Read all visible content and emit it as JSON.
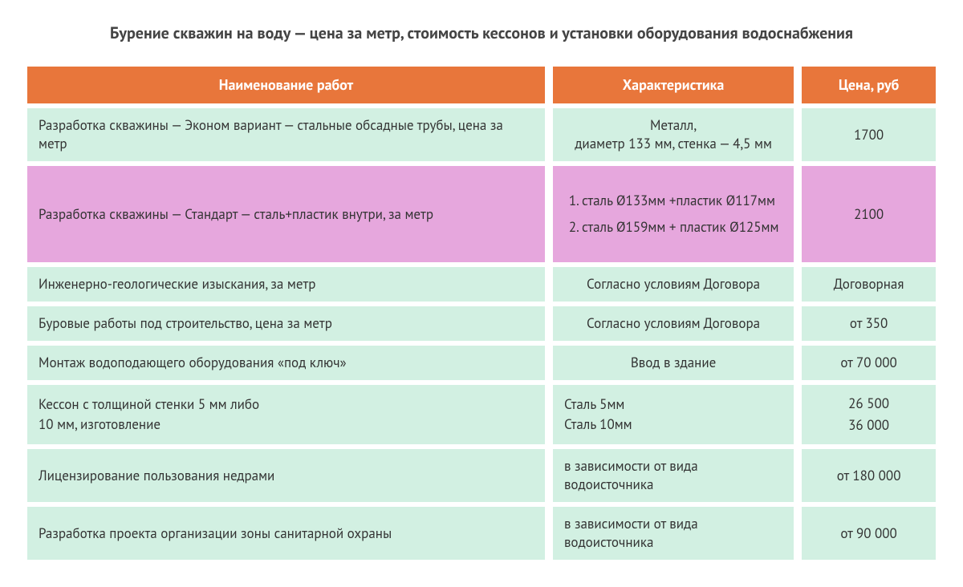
{
  "title": "Бурение скважин на воду — цена за метр, стоимость кессонов и установки оборудования водоснабжения",
  "headers": {
    "name": "Наименование работ",
    "char": "Характеристика",
    "price": "Цена, руб"
  },
  "rows": {
    "r1": {
      "name": "Разработка скважины  — Эконом вариант — стальные обсадные трубы, цена за метр",
      "char": "Металл,\nдиаметр 133 мм, стенка — 4,5 мм",
      "price": "1700"
    },
    "r2": {
      "name": "Разработка скважины  — Стандарт — сталь+пластик внутри, за метр",
      "spec1": "сталь Ø133мм +пластик Ø117мм",
      "spec2": "сталь Ø159мм + пластик Ø125мм",
      "price": "2100"
    },
    "r3": {
      "name": "Инженерно-геологические изыскания, за метр",
      "char": "Согласно условиям Договора",
      "price": "Договорная"
    },
    "r4": {
      "name": "Буровые работы под строительство, цена за метр",
      "char": "Согласно условиям Договора",
      "price": "от 350"
    },
    "r5": {
      "name": "Монтаж водоподающего оборудования «под ключ»",
      "char": "Ввод в здание",
      "price": "от 70 000"
    },
    "r6": {
      "name_l1": "Кессон с толщиной стенки 5 мм либо",
      "name_l2": "10 мм, изготовление",
      "char_l1": "Сталь 5мм",
      "char_l2": "Сталь 10мм",
      "price_l1": "26 500",
      "price_l2": "36 000"
    },
    "r7": {
      "name": "Лицензирование  пользования недрами",
      "char": "в зависимости от вида водоисточника",
      "price": "от 180 000"
    },
    "r8": {
      "name": "Разработка проекта организации зоны санитарной охраны",
      "char": "в зависимости от вида водоисточника",
      "price": "от 90 000"
    }
  },
  "colors": {
    "header_bg": "#e8763b",
    "mint_bg": "#d2f0e2",
    "pink_bg": "#e6a7dd",
    "text": "#333333",
    "title": "#444444"
  }
}
